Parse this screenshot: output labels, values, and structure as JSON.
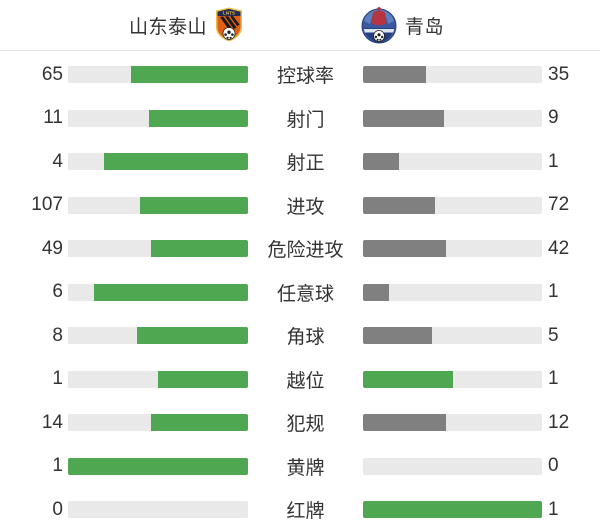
{
  "header": {
    "home_team": "山东泰山",
    "away_team": "青岛",
    "home_logo": "shandong-taishan-lnts-crest",
    "home_logo_text": "LNTS",
    "away_logo": "qingdao-crest"
  },
  "colors": {
    "green_bar": "#4fa851",
    "gray_bar": "#808080",
    "track": "#e9e9e9",
    "text": "#333333",
    "divider": "#e4e4e4",
    "background": "#ffffff"
  },
  "chart_data": {
    "type": "bar",
    "layout": "paired-horizontal-comparison",
    "title": "",
    "teams": [
      "山东泰山",
      "青岛"
    ],
    "categories": [
      "控球率",
      "射门",
      "射正",
      "进攻",
      "危险进攻",
      "任意球",
      "角球",
      "越位",
      "犯规",
      "黄牌",
      "红牌"
    ],
    "series": [
      {
        "name": "山东泰山",
        "values": [
          65,
          11,
          4,
          107,
          49,
          6,
          8,
          1,
          14,
          1,
          0
        ]
      },
      {
        "name": "青岛",
        "values": [
          35,
          9,
          1,
          72,
          42,
          1,
          5,
          1,
          12,
          0,
          1
        ]
      }
    ],
    "bar_fill_rule": "fill fraction = value / (home value + away value); home bar anchored right, away bar anchored left",
    "home_bar_color": "#4fa851",
    "away_bar_color_default": "#808080",
    "away_bar_green_categories": [
      "越位",
      "红牌"
    ]
  },
  "rows": [
    {
      "label": "控球率",
      "home": "65",
      "away": "35",
      "home_pct": 65,
      "away_pct": 35,
      "away_color": "#808080"
    },
    {
      "label": "射门",
      "home": "11",
      "away": "9",
      "home_pct": 55,
      "away_pct": 45,
      "away_color": "#808080"
    },
    {
      "label": "射正",
      "home": "4",
      "away": "1",
      "home_pct": 80,
      "away_pct": 20,
      "away_color": "#808080"
    },
    {
      "label": "进攻",
      "home": "107",
      "away": "72",
      "home_pct": 59.78,
      "away_pct": 40.22,
      "away_color": "#808080"
    },
    {
      "label": "危险进攻",
      "home": "49",
      "away": "42",
      "home_pct": 53.85,
      "away_pct": 46.15,
      "away_color": "#808080"
    },
    {
      "label": "任意球",
      "home": "6",
      "away": "1",
      "home_pct": 85.71,
      "away_pct": 14.29,
      "away_color": "#808080"
    },
    {
      "label": "角球",
      "home": "8",
      "away": "5",
      "home_pct": 61.54,
      "away_pct": 38.46,
      "away_color": "#808080"
    },
    {
      "label": "越位",
      "home": "1",
      "away": "1",
      "home_pct": 50,
      "away_pct": 50,
      "away_color": "#4fa851"
    },
    {
      "label": "犯规",
      "home": "14",
      "away": "12",
      "home_pct": 53.85,
      "away_pct": 46.15,
      "away_color": "#808080"
    },
    {
      "label": "黄牌",
      "home": "1",
      "away": "0",
      "home_pct": 100,
      "away_pct": 0,
      "away_color": "#808080"
    },
    {
      "label": "红牌",
      "home": "0",
      "away": "1",
      "home_pct": 0,
      "away_pct": 100,
      "away_color": "#4fa851"
    }
  ]
}
